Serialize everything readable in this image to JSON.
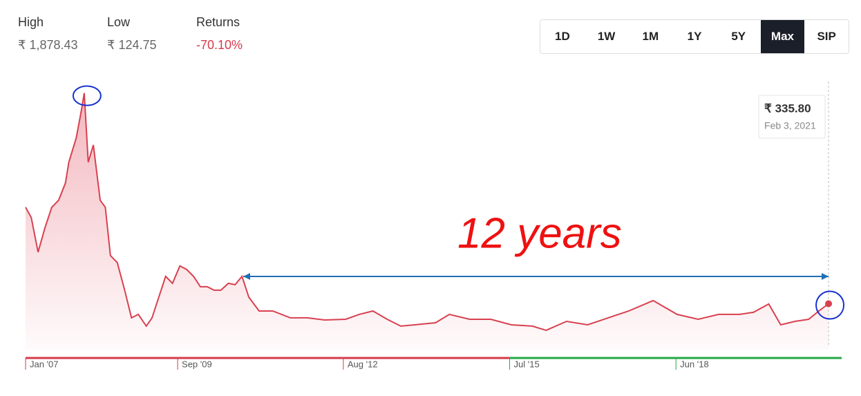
{
  "header": {
    "stats": [
      {
        "label": "High",
        "value": "₹ 1,878.43"
      },
      {
        "label": "Low",
        "value": "₹ 124.75"
      },
      {
        "label": "Returns",
        "value": "-70.10%"
      }
    ],
    "ranges": [
      "1D",
      "1W",
      "1M",
      "1Y",
      "5Y",
      "Max",
      "SIP"
    ],
    "selected": "Max"
  },
  "chart_data": {
    "type": "line",
    "x": [
      2007.0,
      2007.1,
      2007.22,
      2007.34,
      2007.46,
      2007.58,
      2007.7,
      2007.76,
      2007.89,
      2007.98,
      2008.03,
      2008.1,
      2008.19,
      2008.31,
      2008.4,
      2008.49,
      2008.61,
      2008.74,
      2008.86,
      2008.98,
      2009.12,
      2009.22,
      2009.34,
      2009.46,
      2009.58,
      2009.71,
      2009.83,
      2009.95,
      2010.07,
      2010.19,
      2010.31,
      2010.43,
      2010.56,
      2010.68,
      2010.8,
      2010.92,
      2011.1,
      2011.34,
      2011.65,
      2011.95,
      2012.25,
      2012.62,
      2012.86,
      2013.1,
      2013.35,
      2013.59,
      2013.83,
      2014.2,
      2014.44,
      2014.8,
      2015.17,
      2015.53,
      2015.9,
      2016.14,
      2016.5,
      2016.87,
      2017.23,
      2017.59,
      2018.02,
      2018.44,
      2018.81,
      2019.17,
      2019.54,
      2019.78,
      2020.05,
      2020.26,
      2020.51,
      2020.75,
      2020.93,
      2021.1
    ],
    "series": [
      {
        "name": "Price",
        "color": "#d8404f",
        "values": [
          1041,
          966,
          713,
          890,
          1041,
          1092,
          1218,
          1370,
          1547,
          1749,
          1876,
          1370,
          1496,
          1092,
          1041,
          688,
          637,
          435,
          233,
          258,
          172,
          233,
          384,
          536,
          485,
          612,
          586,
          536,
          460,
          460,
          435,
          435,
          485,
          475,
          536,
          384,
          283,
          283,
          233,
          233,
          217,
          222,
          258,
          283,
          222,
          172,
          182,
          197,
          258,
          222,
          222,
          182,
          172,
          142,
          207,
          182,
          233,
          283,
          359,
          258,
          222,
          258,
          258,
          273,
          334,
          182,
          207,
          222,
          283,
          335.8
        ]
      }
    ],
    "xlim": [
      2007,
      2021.33
    ],
    "ylim": [
      0,
      2000
    ],
    "xticks": [
      {
        "value": 2007,
        "label": "Jan '07"
      },
      {
        "value": 2009.67,
        "label": "Sep '09"
      },
      {
        "value": 2012.58,
        "label": "Aug '12"
      },
      {
        "value": 2015.5,
        "label": "Jul '15"
      },
      {
        "value": 2018.42,
        "label": "Jun '18"
      }
    ],
    "xtick_colors": [
      "#d63a4a",
      "#d63a4a",
      "#d63a4a",
      "#22a845",
      "#22a845"
    ],
    "tooltip": {
      "value": "₹ 335.80",
      "date": "Feb 3, 2021"
    },
    "annotation": "12 years"
  }
}
